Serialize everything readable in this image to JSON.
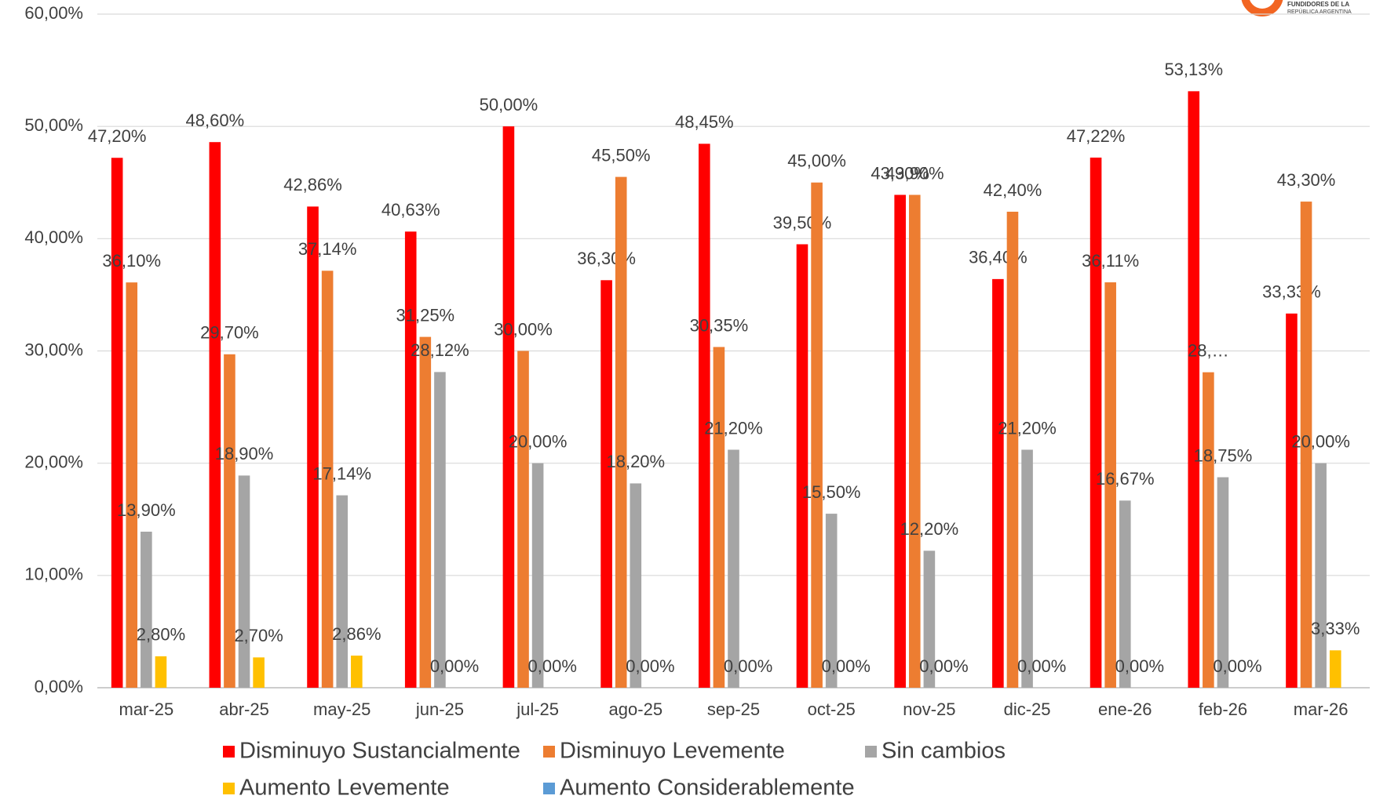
{
  "chart_data": {
    "type": "bar",
    "categories": [
      "mar-25",
      "abr-25",
      "may-25",
      "jun-25",
      "jul-25",
      "ago-25",
      "sep-25",
      "oct-25",
      "nov-25",
      "dic-25",
      "ene-26",
      "feb-26",
      "mar-26"
    ],
    "series": [
      {
        "name": "Disminuyo Sustancialmente",
        "color": "#ff0000",
        "values": [
          47.2,
          48.6,
          42.86,
          40.63,
          50.0,
          36.3,
          48.45,
          39.5,
          43.9,
          36.4,
          47.22,
          53.13,
          33.33
        ],
        "value_labels": [
          "47,20%",
          "48,60%",
          "42,86%",
          "40,63%",
          "50,00%",
          "36,30%",
          "48,45%",
          "39,50%",
          "43,90%",
          "36,40%",
          "47,22%",
          "53,13%",
          "33,33%"
        ]
      },
      {
        "name": "Disminuyo Levemente",
        "color": "#ed7d31",
        "values": [
          36.1,
          29.7,
          37.14,
          31.25,
          30.0,
          45.5,
          30.35,
          45.0,
          43.9,
          42.4,
          36.11,
          28.1,
          43.3
        ],
        "value_labels": [
          "36,10%",
          "29,70%",
          "37,14%",
          "31,25%",
          "30,00%",
          "45,50%",
          "30,35%",
          "45,00%",
          "43,90%",
          "42,40%",
          "36,11%",
          "28,…",
          "43,30%"
        ]
      },
      {
        "name": "Sin cambios",
        "color": "#a5a5a5",
        "values": [
          13.9,
          18.9,
          17.14,
          28.12,
          20.0,
          18.2,
          21.2,
          15.5,
          12.2,
          21.2,
          16.67,
          18.75,
          20.0
        ],
        "value_labels": [
          "13,90%",
          "18,90%",
          "17,14%",
          "28,12%",
          "20,00%",
          "18,20%",
          "21,20%",
          "15,50%",
          "12,20%",
          "21,20%",
          "16,67%",
          "18,75%",
          "20,00%"
        ]
      },
      {
        "name": "Aumento Levemente",
        "color": "#ffc000",
        "values": [
          2.8,
          2.7,
          2.86,
          0,
          0,
          0,
          0,
          0,
          0,
          0,
          0,
          0,
          3.33
        ],
        "value_labels": [
          "2,80%",
          "2,70%",
          "2,86%",
          "0,00%",
          "0,00%",
          "0,00%",
          "0,00%",
          "0,00%",
          "0,00%",
          "0,00%",
          "0,00%",
          "0,00%",
          "3,33%"
        ]
      },
      {
        "name": "Aumento Considerablemente",
        "color": "#5b9bd5",
        "values": [
          0,
          0,
          0,
          0,
          0,
          0,
          0,
          0,
          0,
          0,
          0,
          0,
          0
        ]
      }
    ],
    "ylim": [
      0,
      60
    ],
    "yticks": [
      {
        "value": 0,
        "label": "0,00%"
      },
      {
        "value": 10,
        "label": "10,00%"
      },
      {
        "value": 20,
        "label": "20,00%"
      },
      {
        "value": 30,
        "label": "30,00%"
      },
      {
        "value": 40,
        "label": "40,00%"
      },
      {
        "value": 50,
        "label": "50,00%"
      },
      {
        "value": 60,
        "label": "60,00%"
      }
    ],
    "grid": true
  },
  "logo": {
    "lines": [
      "FUNDIDORES DE LA",
      "REPÚBLICA ARGENTINA"
    ]
  }
}
